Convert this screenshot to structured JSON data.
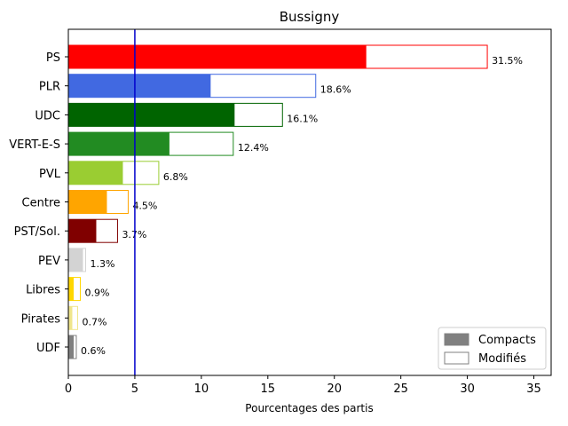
{
  "chart_data": {
    "type": "bar",
    "orientation": "horizontal",
    "title": "Bussigny",
    "xlabel": "Pourcentages des partis",
    "ylabel": "",
    "xlim": [
      0,
      36.3
    ],
    "xticks": [
      0,
      5,
      10,
      15,
      20,
      25,
      30,
      35
    ],
    "threshold": {
      "value": 5,
      "color": "#0000cc"
    },
    "grid": false,
    "legend_position": "bottom-right",
    "legend": [
      {
        "label": "Compacts",
        "style": "filled",
        "color": "#808080"
      },
      {
        "label": "Modifiés",
        "style": "outline",
        "color": "#808080"
      }
    ],
    "categories": [
      "PS",
      "PLR",
      "UDC",
      "VERT-E-S",
      "PVL",
      "Centre",
      "PST/Sol.",
      "PEV",
      "Libres",
      "Pirates",
      "UDF"
    ],
    "series": [
      {
        "name": "Compacts",
        "values": [
          22.4,
          10.7,
          12.5,
          7.6,
          4.1,
          2.9,
          2.1,
          1.1,
          0.4,
          0.3,
          0.4
        ]
      },
      {
        "name": "Modifiés",
        "values": [
          31.5,
          18.6,
          16.1,
          12.4,
          6.8,
          4.5,
          3.7,
          1.3,
          0.9,
          0.7,
          0.6
        ]
      }
    ],
    "data_labels": [
      "31.5%",
      "18.6%",
      "16.1%",
      "12.4%",
      "6.8%",
      "4.5%",
      "3.7%",
      "1.3%",
      "0.9%",
      "0.7%",
      "0.6%"
    ],
    "colors": [
      "#ff0000",
      "#4169e1",
      "#006400",
      "#228b22",
      "#9acd32",
      "#ffa500",
      "#800000",
      "#d3d3d3",
      "#ffd700",
      "#f0e68c",
      "#808080"
    ]
  }
}
